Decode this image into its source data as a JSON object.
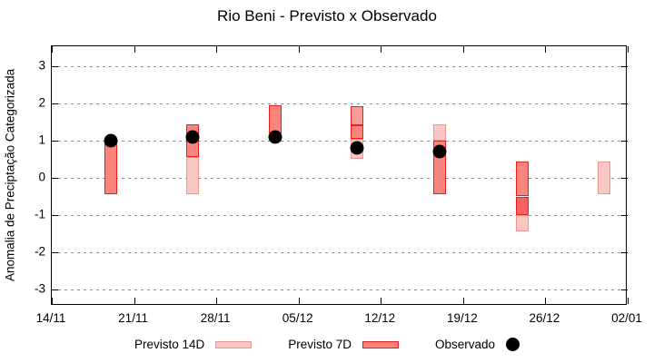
{
  "title": "Rio Beni - Previsto x Observado",
  "y_axis": {
    "label": "Anomalia de Preciptação Categorizada",
    "tick_values": [
      3,
      2,
      1,
      0,
      -1,
      -2,
      -3
    ],
    "tick_labels": [
      "3",
      "2",
      "1",
      "0",
      "-1",
      "-2",
      "-3"
    ]
  },
  "x_axis": {
    "tick_labels": [
      "14/11",
      "21/11",
      "28/11",
      "05/12",
      "12/12",
      "19/12",
      "26/12",
      "02/01"
    ],
    "tick_day_offsets": [
      0,
      7,
      14,
      21,
      28,
      35,
      42,
      49
    ]
  },
  "legend": {
    "items": [
      {
        "label": "Previsto 14D",
        "swatch": "light-box"
      },
      {
        "label": "Previsto 7D",
        "swatch": "red-box"
      },
      {
        "label": "Observado",
        "swatch": "black-dot"
      }
    ]
  },
  "colors": {
    "fill_light": "#fac8c2",
    "fill_medlight": "#fa9e97",
    "fill_medium": "#f9857e",
    "fill_dark": "#f4635f",
    "border_pink": "#f0938c",
    "border_red": "#ed1c1a",
    "observed_dot": "#000000",
    "gridline": "#8c8c8c"
  },
  "chart_data": {
    "type": "candlestick",
    "title": "Rio Beni - Previsto x Observado",
    "xlabel": "",
    "ylabel": "Anomalia de Preciptação Categorizada",
    "ylim": [
      -3.5,
      3.5
    ],
    "x_range_days": 49,
    "grid": "horizontal dotted lines at every integer y value",
    "legend_position": "bottom center, outside plot",
    "series_names": [
      "Previsto 14D",
      "Previsto 7D",
      "Observado"
    ],
    "weeks": [
      {
        "date": "19/11",
        "day_offset": 5,
        "previsto_14d": null,
        "previsto_7d": [
          -0.45,
          1.0
        ],
        "observado": 1.0,
        "segments": [
          {
            "from": -0.45,
            "to": 1.0,
            "fill": "medium",
            "border": "red"
          }
        ]
      },
      {
        "date": "26/11",
        "day_offset": 12,
        "previsto_14d": [
          -0.45,
          0.55
        ],
        "previsto_7d": [
          0.55,
          1.45
        ],
        "observado": 1.1,
        "segments": [
          {
            "from": 0.55,
            "to": 1.45,
            "fill": "medium",
            "border": "red"
          },
          {
            "from": -0.45,
            "to": 0.55,
            "fill": "light",
            "border": "pink"
          }
        ]
      },
      {
        "date": "03/12",
        "day_offset": 19,
        "previsto_14d": null,
        "previsto_7d": [
          1.2,
          1.95
        ],
        "observado": 1.1,
        "segments": [
          {
            "from": 1.2,
            "to": 1.95,
            "fill": "medium",
            "border": "red"
          }
        ]
      },
      {
        "date": "10/12",
        "day_offset": 26,
        "previsto_14d": [
          0.5,
          1.92
        ],
        "previsto_7d": [
          1.04,
          1.42
        ],
        "observado": 0.8,
        "segments": [
          {
            "from": 1.42,
            "to": 1.92,
            "fill": "medlight",
            "border": "red"
          },
          {
            "from": 1.04,
            "to": 1.42,
            "fill": "medium",
            "border": "red"
          },
          {
            "from": 0.5,
            "to": 1.04,
            "fill": "light",
            "border": "pink"
          }
        ]
      },
      {
        "date": "17/12",
        "day_offset": 33,
        "previsto_14d": [
          1.0,
          1.45
        ],
        "previsto_7d": [
          -0.45,
          1.0
        ],
        "observado": 0.7,
        "segments": [
          {
            "from": 1.0,
            "to": 1.45,
            "fill": "light",
            "border": "pink"
          },
          {
            "from": -0.45,
            "to": 1.0,
            "fill": "medium",
            "border": "red"
          }
        ]
      },
      {
        "date": "24/12",
        "day_offset": 40,
        "previsto_14d": [
          -1.45,
          -0.5
        ],
        "previsto_7d": [
          -1.0,
          0.45
        ],
        "observado": null,
        "segments": [
          {
            "from": -0.5,
            "to": 0.45,
            "fill": "medium",
            "border": "red"
          },
          {
            "from": -1.0,
            "to": -0.5,
            "fill": "dark",
            "border": "red"
          },
          {
            "from": -1.45,
            "to": -1.0,
            "fill": "light",
            "border": "pink"
          }
        ]
      },
      {
        "date": "31/12",
        "day_offset": 47,
        "previsto_14d": [
          -0.45,
          0.45
        ],
        "previsto_7d": null,
        "observado": null,
        "segments": [
          {
            "from": -0.45,
            "to": 0.45,
            "fill": "light",
            "border": "pink"
          }
        ]
      }
    ]
  }
}
